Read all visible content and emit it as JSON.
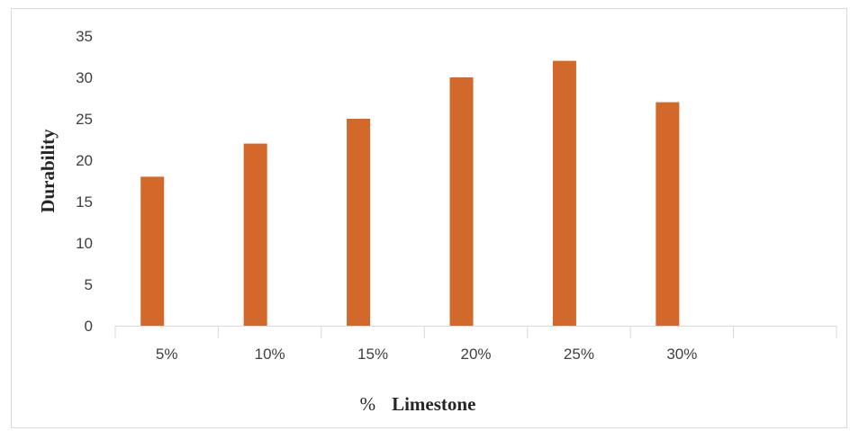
{
  "chart_data": {
    "type": "bar",
    "categories": [
      "5%",
      "10%",
      "15%",
      "20%",
      "25%",
      "30%",
      ""
    ],
    "values": [
      18,
      22,
      25,
      30,
      32,
      27,
      null
    ],
    "title": "",
    "xlabel": "Limestone",
    "xlabel_prefix": "%",
    "ylabel": "Durability",
    "ylim": [
      0,
      35
    ],
    "yticks": [
      0,
      5,
      10,
      15,
      20,
      25,
      30,
      35
    ],
    "bar_color": "#d2692a",
    "grid": false,
    "legend": "none"
  }
}
